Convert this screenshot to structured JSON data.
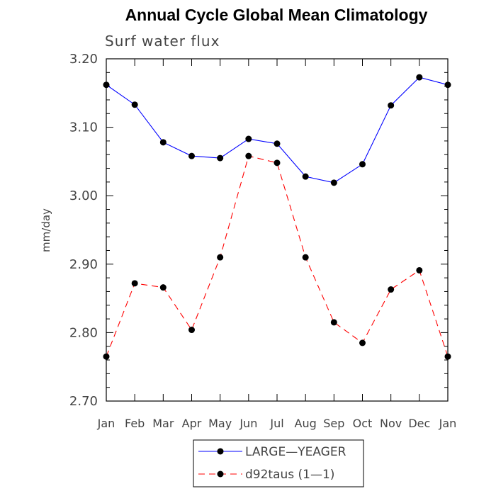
{
  "chart_data": {
    "type": "line",
    "title": "Annual Cycle Global Mean Climatology",
    "subtitle": "Surf water flux",
    "ylabel": "mm/day",
    "xlabel": "",
    "categories": [
      "Jan",
      "Feb",
      "Mar",
      "Apr",
      "May",
      "Jun",
      "Jul",
      "Aug",
      "Sep",
      "Oct",
      "Nov",
      "Dec",
      "Jan"
    ],
    "ylim": [
      2.7,
      3.2
    ],
    "yticks": [
      "2.70",
      "2.80",
      "2.90",
      "3.00",
      "3.10",
      "3.20"
    ],
    "series": [
      {
        "name": "LARGE—YEAGER",
        "color": "#0000ff",
        "dash": "solid",
        "values": [
          3.162,
          3.133,
          3.078,
          3.058,
          3.055,
          3.083,
          3.076,
          3.028,
          3.019,
          3.046,
          3.132,
          3.173,
          3.162
        ]
      },
      {
        "name": "d92taus (1—1)",
        "color": "#ff0000",
        "dash": "dashed",
        "values": [
          2.765,
          2.872,
          2.866,
          2.804,
          2.91,
          3.058,
          3.048,
          2.91,
          2.815,
          2.785,
          2.863,
          2.891,
          2.765
        ]
      }
    ]
  }
}
